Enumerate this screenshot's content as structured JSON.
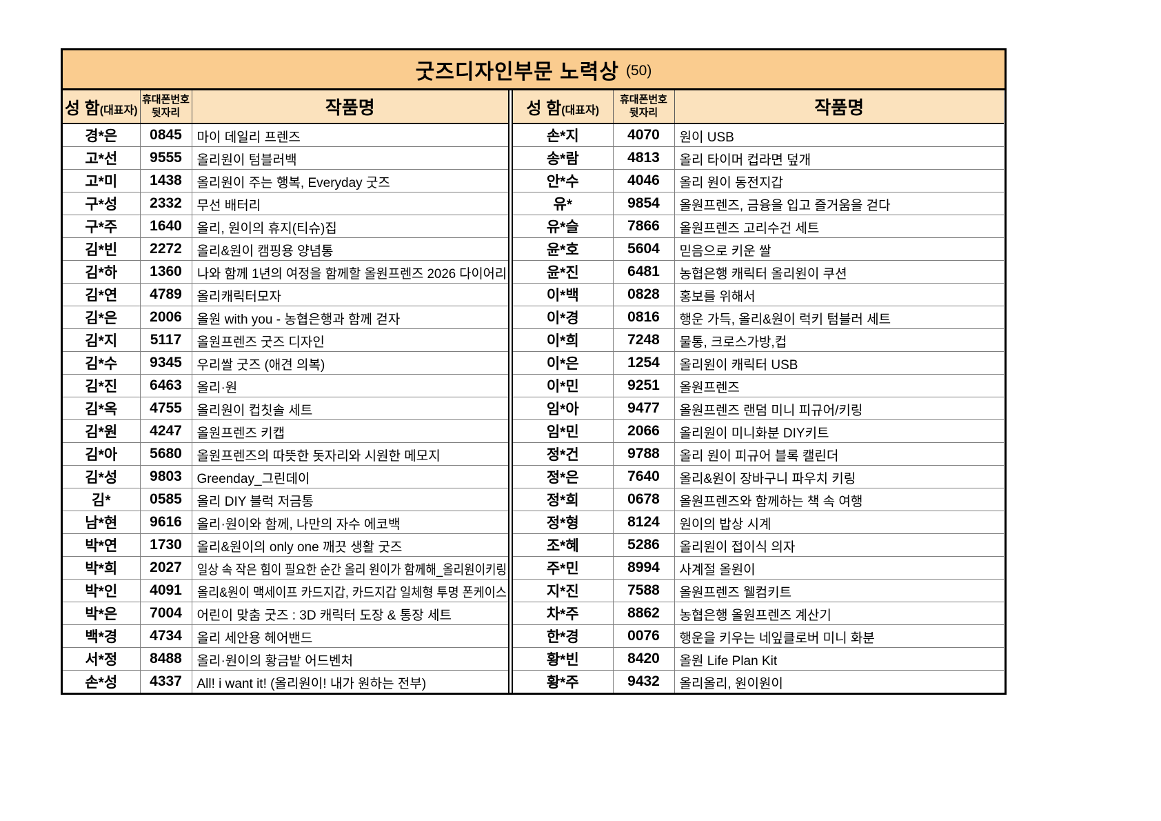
{
  "title": {
    "main": "굿즈디자인부문 노력상",
    "count": "(50)"
  },
  "columns": {
    "name": "성 함",
    "name_sub": "(대표자)",
    "phone_line1": "휴대폰번호",
    "phone_line2": "뒷자리",
    "work": "작품명"
  },
  "colors": {
    "title-bg": "#facc8f",
    "header-bg": "#fbe2bd"
  },
  "left_rows": [
    {
      "name": "경*은",
      "phone": "0845",
      "work": "마이 데일리 프렌즈"
    },
    {
      "name": "고*선",
      "phone": "9555",
      "work": "올리원이 텀블러백"
    },
    {
      "name": "고*미",
      "phone": "1438",
      "work": "올리원이 주는 행복, Everyday 굿즈"
    },
    {
      "name": "구*성",
      "phone": "2332",
      "work": "무선 배터리"
    },
    {
      "name": "구*주",
      "phone": "1640",
      "work": "올리, 원이의 휴지(티슈)집"
    },
    {
      "name": "김*빈",
      "phone": "2272",
      "work": "올리&원이 캠핑용 양념통"
    },
    {
      "name": "김*하",
      "phone": "1360",
      "work": "나와 함께 1년의 여정을 함께할 올원프렌즈 2026 다이어리"
    },
    {
      "name": "김*연",
      "phone": "4789",
      "work": "올리캐릭터모자"
    },
    {
      "name": "김*은",
      "phone": "2006",
      "work": "올원 with you - 농협은행과 함께 걷자"
    },
    {
      "name": "김*지",
      "phone": "5117",
      "work": "올원프렌즈 굿즈 디자인"
    },
    {
      "name": "김*수",
      "phone": "9345",
      "work": "우리쌀 굿즈 (애견 의복)"
    },
    {
      "name": "김*진",
      "phone": "6463",
      "work": "올리·원"
    },
    {
      "name": "김*옥",
      "phone": "4755",
      "work": "올리원이 컵칫솔 세트"
    },
    {
      "name": "김*원",
      "phone": "4247",
      "work": "올원프렌즈 키캡"
    },
    {
      "name": "김*아",
      "phone": "5680",
      "work": "올원프렌즈의 따뜻한 돗자리와 시원한 메모지"
    },
    {
      "name": "김*성",
      "phone": "9803",
      "work": "Greenday_그린데이"
    },
    {
      "name": "김*",
      "phone": "0585",
      "work": "올리 DIY 블럭 저금통"
    },
    {
      "name": "남*현",
      "phone": "9616",
      "work": "올리·원이와 함께, 나만의 자수 에코백"
    },
    {
      "name": "박*연",
      "phone": "1730",
      "work": "올리&원이의 only one 깨끗 생활 굿즈"
    },
    {
      "name": "박*희",
      "phone": "2027",
      "work": "일상 속 작은 힘이 필요한 순간 올리 원이가 함께해_올리원이키링"
    },
    {
      "name": "박*인",
      "phone": "4091",
      "work": "올리&원이 맥세이프 카드지갑, 카드지갑 일체형 투명 폰케이스"
    },
    {
      "name": "박*은",
      "phone": "7004",
      "work": "어린이 맞춤 굿즈 : 3D 캐릭터 도장 & 통장 세트"
    },
    {
      "name": "백*경",
      "phone": "4734",
      "work": "올리 세안용 헤어밴드"
    },
    {
      "name": "서*정",
      "phone": "8488",
      "work": "올리·원이의 황금밭 어드벤처"
    },
    {
      "name": "손*성",
      "phone": "4337",
      "work": "All! i want it! (올리원이! 내가 원하는 전부)"
    }
  ],
  "right_rows": [
    {
      "name": "손*지",
      "phone": "4070",
      "work": "원이 USB"
    },
    {
      "name": "송*람",
      "phone": "4813",
      "work": "올리 타이머 컵라면 덮개"
    },
    {
      "name": "안*수",
      "phone": "4046",
      "work": "올리 원이 동전지갑"
    },
    {
      "name": "유*",
      "phone": "9854",
      "work": "올원프렌즈, 금융을 입고 즐거움을 걷다"
    },
    {
      "name": "유*슬",
      "phone": "7866",
      "work": "올원프렌즈 고리수건 세트"
    },
    {
      "name": "윤*호",
      "phone": "5604",
      "work": "믿음으로 키운 쌀"
    },
    {
      "name": "윤*진",
      "phone": "6481",
      "work": "농협은행 캐릭터 올리원이 쿠션"
    },
    {
      "name": "이*백",
      "phone": "0828",
      "work": "홍보를 위해서"
    },
    {
      "name": "이*경",
      "phone": "0816",
      "work": "행운 가득, 올리&원이 럭키 텀블러 세트"
    },
    {
      "name": "이*희",
      "phone": "7248",
      "work": "물통, 크로스가방,컵"
    },
    {
      "name": "이*은",
      "phone": "1254",
      "work": "올리원이 캐릭터 USB"
    },
    {
      "name": "이*민",
      "phone": "9251",
      "work": "올원프렌즈"
    },
    {
      "name": "임*아",
      "phone": "9477",
      "work": "올원프렌즈 랜덤 미니 피규어/키링"
    },
    {
      "name": "임*민",
      "phone": "2066",
      "work": "올리원이 미니화분 DIY키트"
    },
    {
      "name": "정*건",
      "phone": "9788",
      "work": "올리 원이 피규어 블록 캘린더"
    },
    {
      "name": "정*은",
      "phone": "7640",
      "work": "올리&원이 장바구니 파우치 키링"
    },
    {
      "name": "정*희",
      "phone": "0678",
      "work": "올원프렌즈와 함께하는 책 속 여행"
    },
    {
      "name": "정*형",
      "phone": "8124",
      "work": "원이의 밥상 시계"
    },
    {
      "name": "조*혜",
      "phone": "5286",
      "work": "올리원이 접이식 의자"
    },
    {
      "name": "주*민",
      "phone": "8994",
      "work": "사계절 올원이"
    },
    {
      "name": "지*진",
      "phone": "7588",
      "work": "올원프렌즈 웰컴키트"
    },
    {
      "name": "차*주",
      "phone": "8862",
      "work": "농협은행 올원프렌즈 계산기"
    },
    {
      "name": "한*경",
      "phone": "0076",
      "work": "행운을 키우는 네잎클로버 미니 화분"
    },
    {
      "name": "황*빈",
      "phone": "8420",
      "work": "올원 Life Plan Kit"
    },
    {
      "name": "황*주",
      "phone": "9432",
      "work": "올리올리, 원이원이"
    }
  ]
}
